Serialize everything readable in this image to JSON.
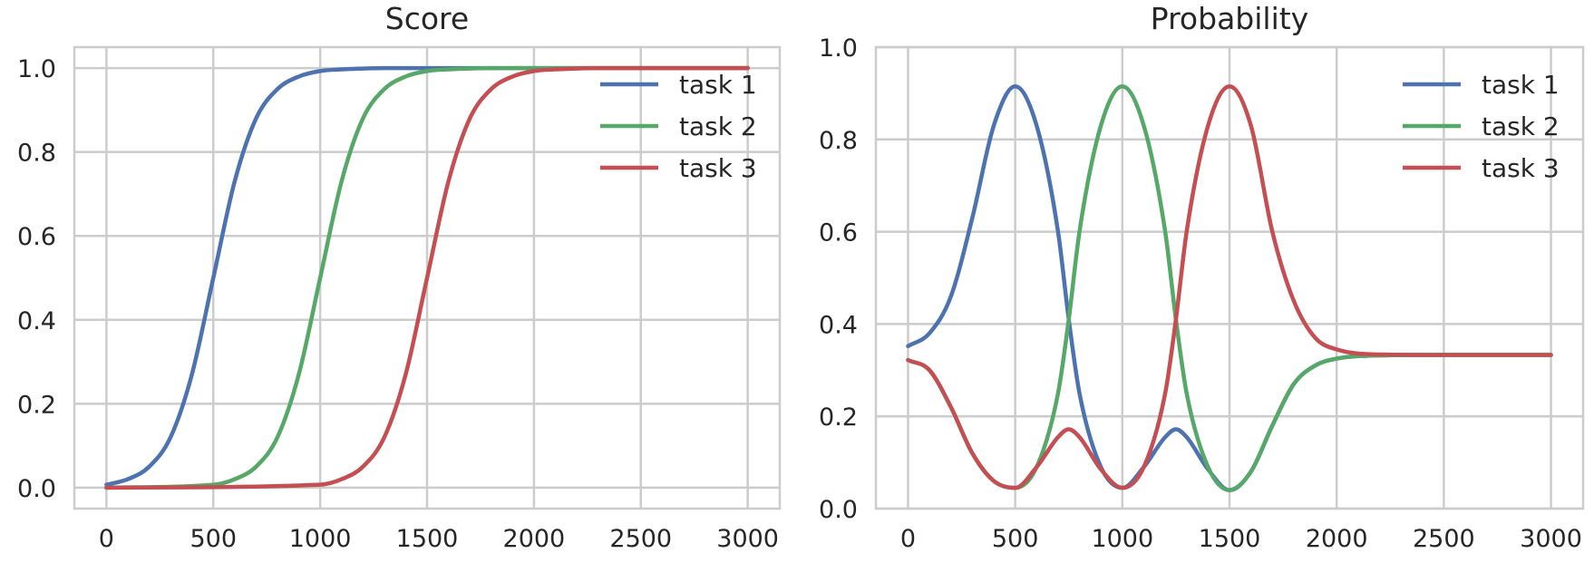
{
  "chart_data": [
    {
      "type": "line",
      "title": "Score",
      "xlim": [
        -150,
        3150
      ],
      "ylim": [
        -0.05,
        1.05
      ],
      "x_ticks": [
        0,
        500,
        1000,
        1500,
        2000,
        2500,
        3000
      ],
      "y_ticks": [
        0.0,
        0.2,
        0.4,
        0.6,
        0.8,
        1.0
      ],
      "grid": true,
      "legend_position": "top-right",
      "series": [
        {
          "name": "task 1",
          "color": "#4c72b0",
          "x": [
            0,
            100,
            200,
            300,
            400,
            500,
            600,
            700,
            800,
            900,
            1000,
            1100,
            1200,
            1300,
            1400,
            1500,
            1600,
            1700,
            1800,
            1900,
            2000,
            2500,
            3000
          ],
          "y": [
            0.007,
            0.02,
            0.05,
            0.12,
            0.27,
            0.5,
            0.73,
            0.88,
            0.95,
            0.98,
            0.993,
            0.997,
            0.999,
            1.0,
            1.0,
            1.0,
            1.0,
            1.0,
            1.0,
            1.0,
            1.0,
            1.0,
            1.0
          ]
        },
        {
          "name": "task 2",
          "color": "#55a868",
          "x": [
            0,
            500,
            600,
            700,
            800,
            900,
            1000,
            1100,
            1200,
            1300,
            1400,
            1500,
            1600,
            1700,
            1800,
            2000,
            2500,
            3000
          ],
          "y": [
            0.0,
            0.007,
            0.02,
            0.05,
            0.12,
            0.27,
            0.5,
            0.73,
            0.88,
            0.95,
            0.98,
            0.993,
            0.997,
            0.999,
            1.0,
            1.0,
            1.0,
            1.0
          ]
        },
        {
          "name": "task 3",
          "color": "#c44e52",
          "x": [
            0,
            1000,
            1100,
            1200,
            1300,
            1400,
            1500,
            1600,
            1700,
            1800,
            1900,
            2000,
            2100,
            2200,
            2300,
            2500,
            3000
          ],
          "y": [
            0.0,
            0.007,
            0.02,
            0.05,
            0.12,
            0.27,
            0.5,
            0.73,
            0.88,
            0.95,
            0.98,
            0.993,
            0.997,
            0.999,
            1.0,
            1.0,
            1.0
          ]
        }
      ]
    },
    {
      "type": "line",
      "title": "Probability",
      "xlim": [
        -150,
        3150
      ],
      "ylim": [
        0.0,
        1.0
      ],
      "x_ticks": [
        0,
        500,
        1000,
        1500,
        2000,
        2500,
        3000
      ],
      "y_ticks": [
        0.0,
        0.2,
        0.4,
        0.6,
        0.8,
        1.0
      ],
      "grid": true,
      "legend_position": "top-right",
      "series": [
        {
          "name": "task 1",
          "color": "#4c72b0",
          "x": [
            0,
            100,
            200,
            300,
            400,
            500,
            600,
            700,
            750,
            800,
            900,
            1000,
            1100,
            1200,
            1250,
            1300,
            1400,
            1500,
            1600,
            1700,
            1800,
            1900,
            2000,
            2200,
            2500,
            3000
          ],
          "y": [
            0.352,
            0.38,
            0.46,
            0.63,
            0.83,
            0.915,
            0.83,
            0.6,
            0.41,
            0.25,
            0.09,
            0.045,
            0.09,
            0.155,
            0.172,
            0.155,
            0.085,
            0.04,
            0.08,
            0.18,
            0.27,
            0.31,
            0.325,
            0.332,
            0.333,
            0.333
          ]
        },
        {
          "name": "task 2",
          "color": "#55a868",
          "x": [
            0,
            100,
            200,
            300,
            400,
            500,
            600,
            700,
            750,
            800,
            900,
            1000,
            1100,
            1200,
            1250,
            1300,
            1400,
            1500,
            1600,
            1700,
            1800,
            1900,
            2000,
            2200,
            2500,
            3000
          ],
          "y": [
            0.322,
            0.3,
            0.22,
            0.12,
            0.06,
            0.045,
            0.09,
            0.25,
            0.41,
            0.6,
            0.83,
            0.915,
            0.83,
            0.6,
            0.41,
            0.25,
            0.09,
            0.04,
            0.08,
            0.18,
            0.27,
            0.31,
            0.325,
            0.332,
            0.333,
            0.333
          ]
        },
        {
          "name": "task 3",
          "color": "#c44e52",
          "x": [
            0,
            100,
            200,
            300,
            400,
            500,
            600,
            700,
            750,
            800,
            900,
            1000,
            1100,
            1200,
            1250,
            1300,
            1400,
            1500,
            1600,
            1700,
            1800,
            1900,
            2000,
            2200,
            2500,
            3000
          ],
          "y": [
            0.322,
            0.3,
            0.22,
            0.12,
            0.06,
            0.045,
            0.09,
            0.155,
            0.172,
            0.155,
            0.085,
            0.045,
            0.09,
            0.25,
            0.41,
            0.6,
            0.83,
            0.915,
            0.83,
            0.6,
            0.45,
            0.37,
            0.345,
            0.334,
            0.333,
            0.333
          ]
        }
      ]
    }
  ]
}
